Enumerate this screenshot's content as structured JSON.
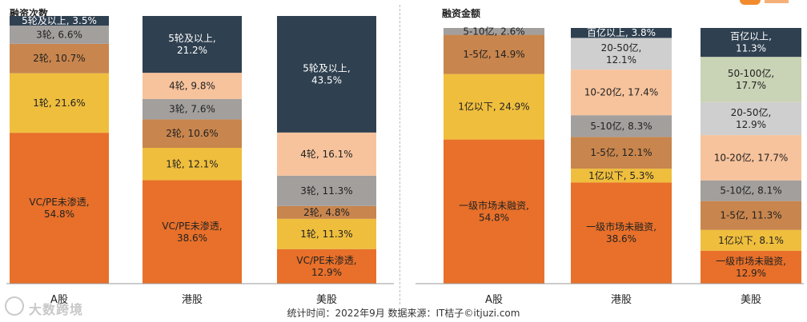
{
  "chart_data": [
    {
      "type": "bar",
      "stacked": true,
      "title": "融资次数",
      "categories": [
        "A股",
        "港股",
        "美股"
      ],
      "series": [
        {
          "name": "VC/PE未渗透",
          "color": "#e8702a",
          "values": [
            54.8,
            38.6,
            12.9
          ]
        },
        {
          "name": "1轮",
          "color": "#efbe3d",
          "values": [
            21.6,
            12.1,
            11.3
          ]
        },
        {
          "name": "2轮",
          "color": "#c8854d",
          "values": [
            10.7,
            10.6,
            4.8
          ]
        },
        {
          "name": "3轮",
          "color": "#a29f9d",
          "values": [
            6.6,
            7.6,
            11.3
          ]
        },
        {
          "name": "4轮",
          "color": "#f7c39c",
          "values": [
            null,
            9.8,
            16.1
          ]
        },
        {
          "name": "5轮及以上",
          "color": "#2f4050",
          "values": [
            3.5,
            21.2,
            43.5
          ]
        }
      ],
      "labels": [
        [
          "VC/PE未渗透,\n54.8%",
          "VC/PE未渗透,\n38.6%",
          "VC/PE未渗透,\n12.9%"
        ],
        [
          "1轮, 21.6%",
          "1轮, 12.1%",
          "1轮, 11.3%"
        ],
        [
          "2轮, 10.7%",
          "2轮, 10.6%",
          "2轮, 4.8%"
        ],
        [
          "3轮, 6.6%",
          "3轮, 7.6%",
          "3轮, 11.3%"
        ],
        [
          "",
          "4轮, 9.8%",
          "4轮, 16.1%"
        ],
        [
          "5轮及以上, 3.5%",
          "5轮及以上,\n21.2%",
          "5轮及以上,\n43.5%"
        ]
      ]
    },
    {
      "type": "bar",
      "stacked": true,
      "title": "融资金额",
      "categories": [
        "A股",
        "港股",
        "美股"
      ],
      "series": [
        {
          "name": "一级市场未融资",
          "color": "#e8702a",
          "values": [
            54.8,
            38.6,
            12.9
          ]
        },
        {
          "name": "1亿以下",
          "color": "#efbe3d",
          "values": [
            24.9,
            5.3,
            8.1
          ]
        },
        {
          "name": "1-5亿",
          "color": "#c8854d",
          "values": [
            14.9,
            12.1,
            11.3
          ]
        },
        {
          "name": "5-10亿",
          "color": "#a29f9d",
          "values": [
            2.6,
            8.3,
            8.1
          ]
        },
        {
          "name": "10-20亿",
          "color": "#f7c39c",
          "values": [
            null,
            17.4,
            17.7
          ]
        },
        {
          "name": "20-50亿",
          "color": "#cfcfcf",
          "values": [
            null,
            12.1,
            12.9
          ]
        },
        {
          "name": "50-100亿",
          "color": "#c9d3b5",
          "values": [
            null,
            null,
            17.7
          ]
        },
        {
          "name": "百亿以上",
          "color": "#2f4050",
          "values": [
            null,
            3.8,
            11.3
          ]
        }
      ],
      "labels": [
        [
          "一级市场未融资,\n54.8%",
          "一级市场未融资,\n38.6%",
          "一级市场未融资,\n12.9%"
        ],
        [
          "1亿以下, 24.9%",
          "1亿以下, 5.3%",
          "1亿以下, 8.1%"
        ],
        [
          "1-5亿, 14.9%",
          "1-5亿, 12.1%",
          "1-5亿, 11.3%"
        ],
        [
          "5-10亿, 2.6%",
          "5-10亿, 8.3%",
          "5-10亿, 8.1%"
        ],
        [
          "",
          "10-20亿, 17.4%",
          "10-20亿, 17.7%"
        ],
        [
          "",
          "20-50亿,\n12.1%",
          "20-50亿,\n12.9%"
        ],
        [
          "",
          "",
          "50-100亿,\n17.7%"
        ],
        [
          "",
          "百亿以上, 3.8%",
          "百亿以上,\n11.3%"
        ]
      ]
    }
  ],
  "footer": "统计时间：2022年9月  数据来源：IT桔子©itjuzi.com",
  "watermark": "大数跨境"
}
